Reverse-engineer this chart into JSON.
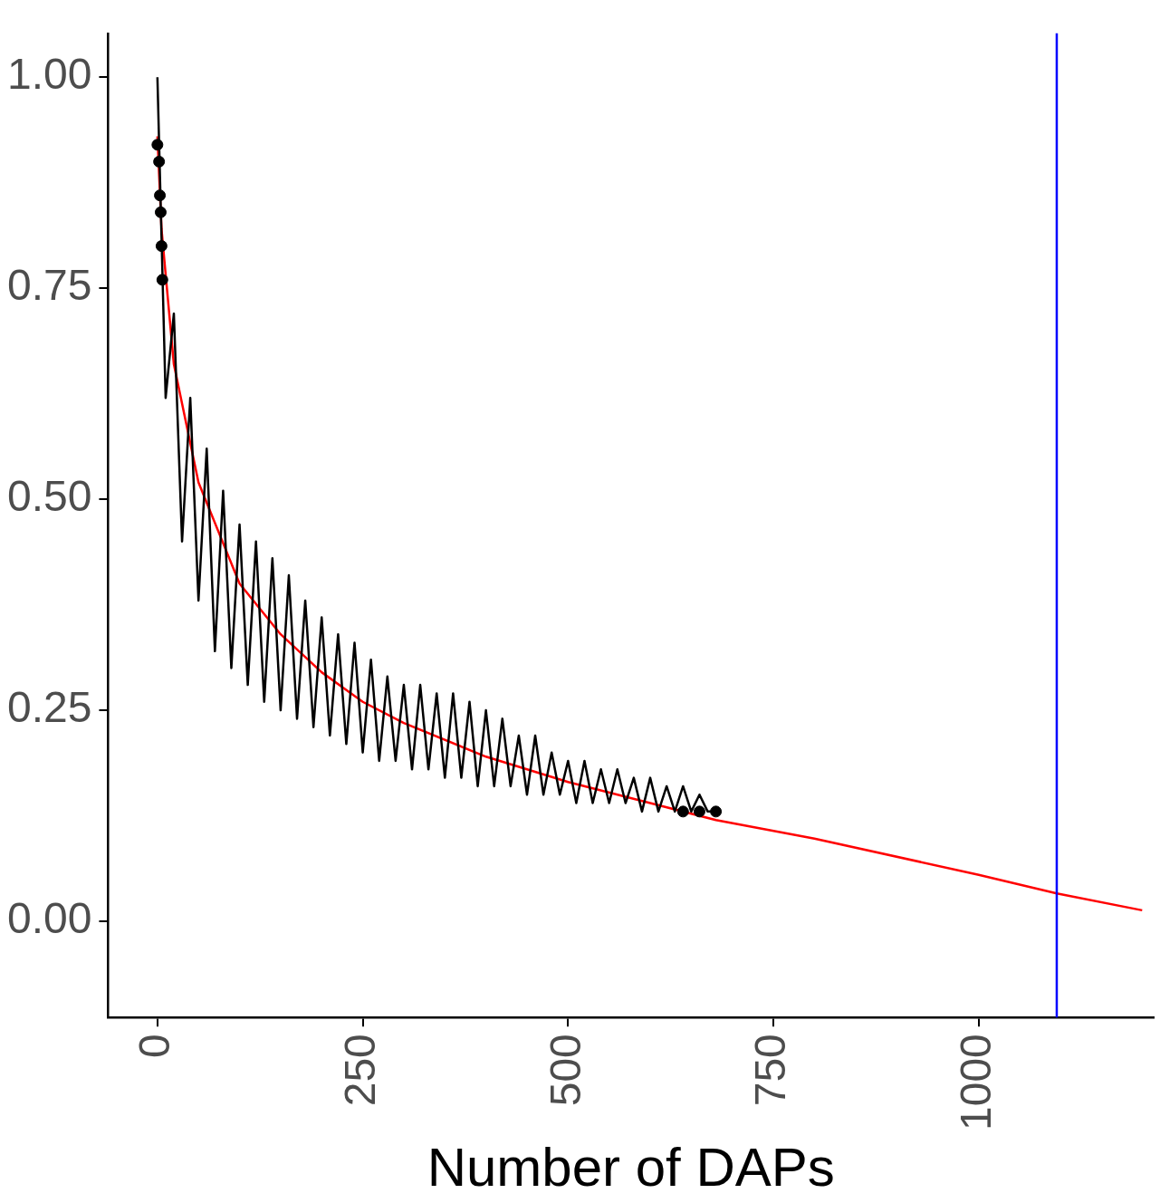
{
  "chart_data": {
    "type": "line",
    "xlabel": "Number of DAPs",
    "xlim": [
      -60,
      1213
    ],
    "xticks": [
      0,
      250,
      500,
      750,
      1000
    ],
    "ylim": [
      -0.114,
      1.052
    ],
    "yticks": [
      {
        "value": 0,
        "label": "0.00"
      },
      {
        "value": 0.25,
        "label": "0.25"
      },
      {
        "value": 0.5,
        "label": "0.50"
      },
      {
        "value": 0.75,
        "label": "0.75"
      },
      {
        "value": 1,
        "label": "1.00"
      }
    ],
    "grid": false,
    "legend": false,
    "series": [
      {
        "color": "#000000",
        "x": [
          0,
          10,
          20,
          30,
          40,
          50,
          60,
          70,
          80,
          90,
          100,
          110,
          120,
          130,
          140,
          150,
          160,
          170,
          180,
          190,
          200,
          210,
          220,
          230,
          240,
          250,
          260,
          270,
          280,
          290,
          300,
          310,
          320,
          330,
          340,
          350,
          360,
          370,
          380,
          390,
          400,
          410,
          420,
          430,
          440,
          450,
          460,
          470,
          480,
          490,
          500,
          510,
          520,
          530,
          540,
          550,
          560,
          570,
          580,
          590,
          600,
          610,
          620,
          630,
          640,
          650,
          660,
          670,
          680
        ],
        "values": [
          1.0,
          0.62,
          0.72,
          0.45,
          0.62,
          0.38,
          0.56,
          0.32,
          0.51,
          0.3,
          0.47,
          0.28,
          0.45,
          0.26,
          0.43,
          0.25,
          0.41,
          0.24,
          0.38,
          0.23,
          0.36,
          0.22,
          0.34,
          0.21,
          0.33,
          0.2,
          0.31,
          0.19,
          0.29,
          0.19,
          0.28,
          0.18,
          0.28,
          0.18,
          0.27,
          0.17,
          0.27,
          0.17,
          0.26,
          0.16,
          0.25,
          0.16,
          0.24,
          0.16,
          0.22,
          0.15,
          0.22,
          0.15,
          0.2,
          0.15,
          0.19,
          0.14,
          0.19,
          0.14,
          0.18,
          0.14,
          0.18,
          0.14,
          0.17,
          0.13,
          0.17,
          0.13,
          0.16,
          0.13,
          0.16,
          0.13,
          0.15,
          0.13,
          0.13
        ]
      },
      {
        "type": "scatter",
        "color": "#000000",
        "marker": "circle",
        "x": [
          0,
          2,
          3,
          4,
          5,
          6,
          640,
          660,
          680
        ],
        "values": [
          0.92,
          0.9,
          0.86,
          0.84,
          0.8,
          0.76,
          0.13,
          0.13,
          0.13
        ]
      },
      {
        "type": "line",
        "color": "#ff0000",
        "x": [
          0,
          5,
          20,
          50,
          100,
          150,
          200,
          250,
          300,
          400,
          500,
          600,
          680,
          800,
          1000,
          1095,
          1199
        ],
        "values": [
          0.93,
          0.82,
          0.66,
          0.52,
          0.4,
          0.34,
          0.295,
          0.26,
          0.235,
          0.195,
          0.165,
          0.14,
          0.12,
          0.098,
          0.055,
          0.033,
          0.013
        ]
      }
    ],
    "ref_lines": [
      {
        "axis": "x",
        "value": 1095,
        "color": "#0000ff"
      }
    ]
  }
}
